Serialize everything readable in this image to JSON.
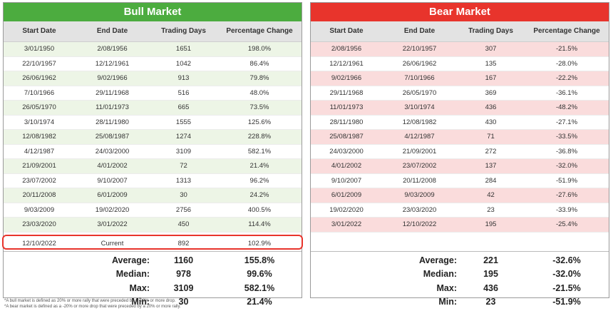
{
  "bull": {
    "title": "Bull Market",
    "headers": [
      "Start Date",
      "End Date",
      "Trading Days",
      "Percentage Change"
    ],
    "rows": [
      [
        "3/01/1950",
        "2/08/1956",
        "1651",
        "198.0%"
      ],
      [
        "22/10/1957",
        "12/12/1961",
        "1042",
        "86.4%"
      ],
      [
        "26/06/1962",
        "9/02/1966",
        "913",
        "79.8%"
      ],
      [
        "7/10/1966",
        "29/11/1968",
        "516",
        "48.0%"
      ],
      [
        "26/05/1970",
        "11/01/1973",
        "665",
        "73.5%"
      ],
      [
        "3/10/1974",
        "28/11/1980",
        "1555",
        "125.6%"
      ],
      [
        "12/08/1982",
        "25/08/1987",
        "1274",
        "228.8%"
      ],
      [
        "4/12/1987",
        "24/03/2000",
        "3109",
        "582.1%"
      ],
      [
        "21/09/2001",
        "4/01/2002",
        "72",
        "21.4%"
      ],
      [
        "23/07/2002",
        "9/10/2007",
        "1313",
        "96.2%"
      ],
      [
        "20/11/2008",
        "6/01/2009",
        "30",
        "24.2%"
      ],
      [
        "9/03/2009",
        "19/02/2020",
        "2756",
        "400.5%"
      ],
      [
        "23/03/2020",
        "3/01/2022",
        "450",
        "114.4%"
      ]
    ],
    "current": [
      "12/10/2022",
      "Current",
      "892",
      "102.9%"
    ],
    "stats": [
      {
        "label": "Average:",
        "days": "1160",
        "pct": "155.8%"
      },
      {
        "label": "Median:",
        "days": "978",
        "pct": "99.6%"
      },
      {
        "label": "Max:",
        "days": "3109",
        "pct": "582.1%"
      },
      {
        "label": "Min:",
        "days": "30",
        "pct": "21.4%"
      }
    ]
  },
  "bear": {
    "title": "Bear Market",
    "headers": [
      "Start Date",
      "End Date",
      "Trading Days",
      "Percentage Change"
    ],
    "rows": [
      [
        "2/08/1956",
        "22/10/1957",
        "307",
        "-21.5%"
      ],
      [
        "12/12/1961",
        "26/06/1962",
        "135",
        "-28.0%"
      ],
      [
        "9/02/1966",
        "7/10/1966",
        "167",
        "-22.2%"
      ],
      [
        "29/11/1968",
        "26/05/1970",
        "369",
        "-36.1%"
      ],
      [
        "11/01/1973",
        "3/10/1974",
        "436",
        "-48.2%"
      ],
      [
        "28/11/1980",
        "12/08/1982",
        "430",
        "-27.1%"
      ],
      [
        "25/08/1987",
        "4/12/1987",
        "71",
        "-33.5%"
      ],
      [
        "24/03/2000",
        "21/09/2001",
        "272",
        "-36.8%"
      ],
      [
        "4/01/2002",
        "23/07/2002",
        "137",
        "-32.0%"
      ],
      [
        "9/10/2007",
        "20/11/2008",
        "284",
        "-51.9%"
      ],
      [
        "6/01/2009",
        "9/03/2009",
        "42",
        "-27.6%"
      ],
      [
        "19/02/2020",
        "23/03/2020",
        "23",
        "-33.9%"
      ],
      [
        "3/01/2022",
        "12/10/2022",
        "195",
        "-25.4%"
      ]
    ],
    "stats": [
      {
        "label": "Average:",
        "days": "221",
        "pct": "-32.6%"
      },
      {
        "label": "Median:",
        "days": "195",
        "pct": "-32.0%"
      },
      {
        "label": "Max:",
        "days": "436",
        "pct": "-21.5%"
      },
      {
        "label": "Min:",
        "days": "23",
        "pct": "-51.9%"
      }
    ]
  },
  "notes": [
    "*A bull market is defined as 20% or more rally that were preceded by a -20% or more drop.",
    "*A bear market is defined as a -20% or more drop that were preceded by a 20% or more rally."
  ],
  "colors": {
    "bull_title": "#4cac3f",
    "bear_title": "#e8342c",
    "bull_alt": "#edf5e6",
    "bear_alt": "#fadcdc",
    "highlight": "#e8342c"
  }
}
